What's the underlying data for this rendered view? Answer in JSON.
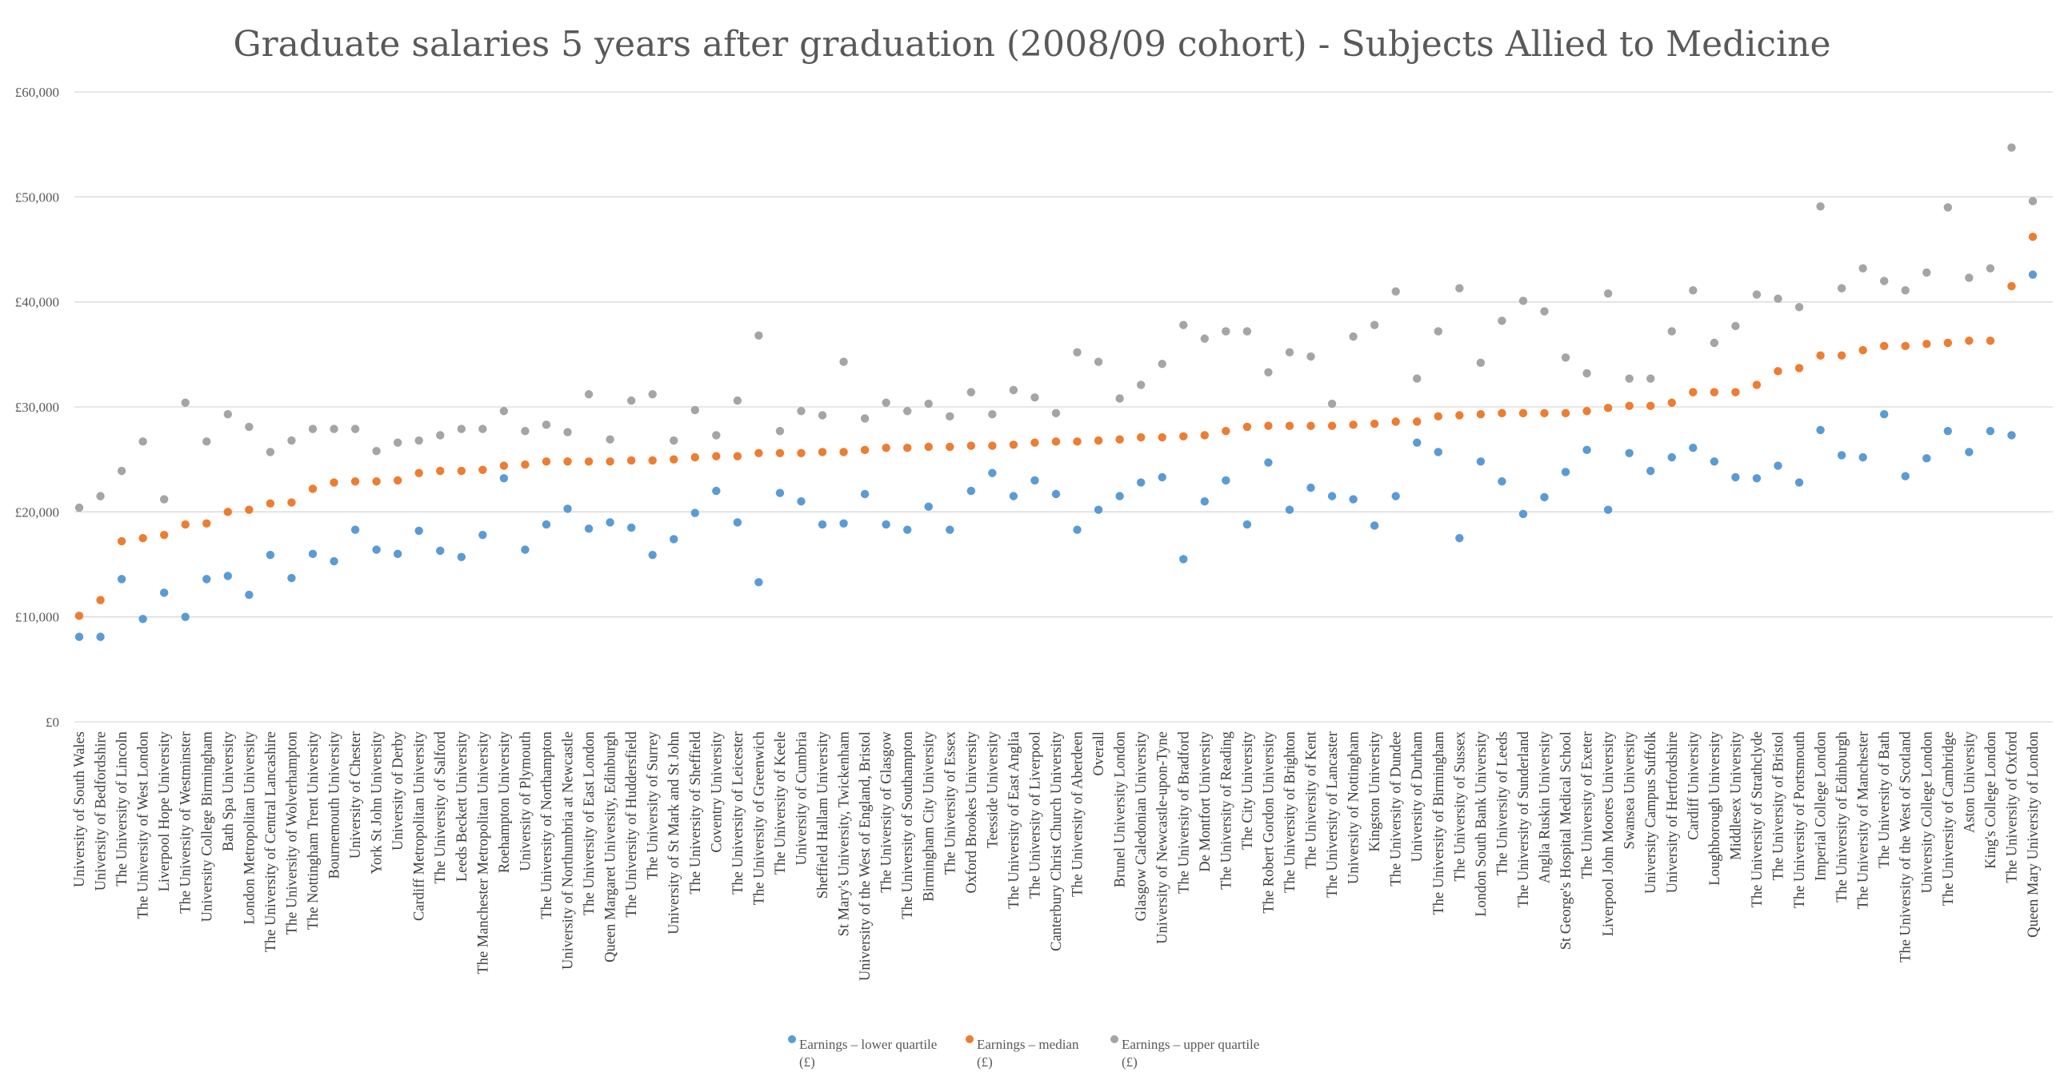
{
  "chart_data": {
    "type": "scatter",
    "title": "Graduate salaries 5 years after graduation (2008/09 cohort) - Subjects Allied to Medicine",
    "xlabel": "",
    "ylabel": "",
    "ylim": [
      0,
      60000
    ],
    "yticks": [
      0,
      10000,
      20000,
      30000,
      40000,
      50000,
      60000
    ],
    "ytick_labels": [
      "£0",
      "£10,000",
      "£20,000",
      "£30,000",
      "£40,000",
      "£50,000",
      "£60,000"
    ],
    "grid": true,
    "legend_position": "bottom",
    "categories": [
      "University of South Wales",
      "University of Bedfordshire",
      "The University of Lincoln",
      "The University of West London",
      "Liverpool Hope University",
      "The University of Westminster",
      "University College Birmingham",
      "Bath Spa University",
      "London Metropolitan University",
      "The University of Central Lancashire",
      "The University of Wolverhampton",
      "The Nottingham Trent University",
      "Bournemouth University",
      "University of Chester",
      "York St John University",
      "University of Derby",
      "Cardiff Metropolitan University",
      "The University of Salford",
      "Leeds Beckett University",
      "The Manchester Metropolitan University",
      "Roehampton University",
      "University of Plymouth",
      "The University of Northampton",
      "University of Northumbria at Newcastle",
      "The University of East London",
      "Queen Margaret University, Edinburgh",
      "The University of Huddersfield",
      "The University of Surrey",
      "University of St Mark and St John",
      "The University of Sheffield",
      "Coventry University",
      "The University of Leicester",
      "The University of Greenwich",
      "The University of Keele",
      "University of Cumbria",
      "Sheffield Hallam University",
      "St Mary's University, Twickenham",
      "University of the West of England, Bristol",
      "The University of Glasgow",
      "The University of Southampton",
      "Birmingham City University",
      "The University of Essex",
      "Oxford Brookes University",
      "Teesside University",
      "The University of East Anglia",
      "The University of Liverpool",
      "Canterbury Christ Church University",
      "The University of Aberdeen",
      "Overall",
      "Brunel University London",
      "Glasgow Caledonian University",
      "University of Newcastle-upon-Tyne",
      "The University of Bradford",
      "De Montfort University",
      "The University of Reading",
      "The City University",
      "The Robert Gordon University",
      "The University of Brighton",
      "The University of Kent",
      "The University of Lancaster",
      "University of Nottingham",
      "Kingston University",
      "The University of Dundee",
      "University of Durham",
      "The University of Birmingham",
      "The University of Sussex",
      "London South Bank University",
      "The University of Leeds",
      "The University of Sunderland",
      "Anglia Ruskin University",
      "St George's Hospital Medical School",
      "The University of Exeter",
      "Liverpool John Moores University",
      "Swansea University",
      "University Campus Suffolk",
      "University of Hertfordshire",
      "Cardiff University",
      "Loughborough University",
      "Middlesex University",
      "The University of Strathclyde",
      "The University of Bristol",
      "The University of Portsmouth",
      "Imperial College London",
      "The University of Edinburgh",
      "The University of Manchester",
      "The University of Bath",
      "The University of the West of Scotland",
      "University College London",
      "The University of Cambridge",
      "Aston University",
      "King's College London",
      "The University of Oxford",
      "Queen Mary University of London"
    ],
    "series": [
      {
        "name": "Earnings – lower quartile (£)",
        "line1": "Earnings – lower quartile",
        "line2": "(£)",
        "color": "#5b9bd5",
        "values": [
          8100,
          8100,
          13600,
          9800,
          12300,
          10000,
          13600,
          13900,
          12100,
          15900,
          13700,
          16000,
          15300,
          18300,
          16400,
          16000,
          18200,
          16300,
          15700,
          17800,
          23200,
          16400,
          18800,
          20300,
          18400,
          19000,
          18500,
          15900,
          17400,
          19900,
          22000,
          19000,
          13300,
          21800,
          21000,
          18800,
          18900,
          21700,
          18800,
          18300,
          20500,
          18300,
          22000,
          23700,
          21500,
          23000,
          21700,
          18300,
          20200,
          21500,
          22800,
          23300,
          15500,
          21000,
          23000,
          18800,
          24700,
          20200,
          22300,
          21500,
          21200,
          18700,
          21500,
          26600,
          25700,
          17500,
          24800,
          22900,
          19800,
          21400,
          23800,
          25900,
          20200,
          25600,
          23900,
          25200,
          26100,
          24800,
          23300,
          23200,
          24400,
          22800,
          27800,
          25400,
          25200,
          29300,
          23400,
          25100,
          27700,
          25700,
          27700,
          27300,
          42600
        ]
      },
      {
        "name": "Earnings – median (£)",
        "line1": "Earnings – median",
        "line2": "(£)",
        "color": "#ed7d31",
        "values": [
          10100,
          11600,
          17200,
          17500,
          17800,
          18800,
          18900,
          20000,
          20200,
          20800,
          20900,
          22200,
          22800,
          22900,
          22900,
          23000,
          23700,
          23900,
          23900,
          24000,
          24400,
          24500,
          24800,
          24800,
          24800,
          24800,
          24900,
          24900,
          25000,
          25200,
          25300,
          25300,
          25600,
          25600,
          25600,
          25700,
          25700,
          25900,
          26100,
          26100,
          26200,
          26200,
          26300,
          26300,
          26400,
          26600,
          26700,
          26700,
          26800,
          26900,
          27100,
          27100,
          27200,
          27300,
          27700,
          28100,
          28200,
          28200,
          28200,
          28200,
          28300,
          28400,
          28600,
          28600,
          29100,
          29200,
          29300,
          29400,
          29400,
          29400,
          29400,
          29600,
          29900,
          30100,
          30100,
          30400,
          31400,
          31400,
          31400,
          32100,
          33400,
          33700,
          34900,
          34900,
          35400,
          35800,
          35800,
          36000,
          36100,
          36300,
          36300,
          41500,
          46200
        ]
      },
      {
        "name": "Earnings – upper quartile (£)",
        "line1": "Earnings – upper quartile",
        "line2": "(£)",
        "color": "#a5a5a5",
        "values": [
          20400,
          21500,
          23900,
          26700,
          21200,
          30400,
          26700,
          29300,
          28100,
          25700,
          26800,
          27900,
          27900,
          27900,
          25800,
          26600,
          26800,
          27300,
          27900,
          27900,
          29600,
          27700,
          28300,
          27600,
          31200,
          26900,
          30600,
          31200,
          26800,
          29700,
          27300,
          30600,
          36800,
          27700,
          29600,
          29200,
          34300,
          28900,
          30400,
          29600,
          30300,
          29100,
          31400,
          29300,
          31600,
          30900,
          29400,
          35200,
          34300,
          30800,
          32100,
          34100,
          37800,
          36500,
          37200,
          37200,
          33300,
          35200,
          34800,
          30300,
          36700,
          37800,
          41000,
          32700,
          37200,
          41300,
          34200,
          38200,
          40100,
          39100,
          34700,
          33200,
          40800,
          32700,
          32700,
          37200,
          41100,
          36100,
          37700,
          40700,
          40300,
          39500,
          49100,
          41300,
          43200,
          42000,
          41100,
          42800,
          49000,
          42300,
          43200,
          54700,
          49600
        ]
      }
    ]
  }
}
